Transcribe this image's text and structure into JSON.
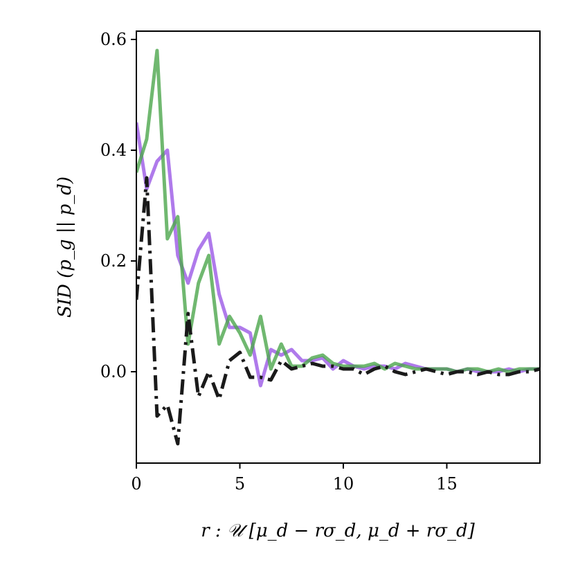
{
  "chart_data": {
    "type": "line",
    "title": "",
    "xlabel": "r : 𝒰 [μ_d − rσ_d, μ_d + rσ_d]",
    "ylabel": "SID (p_g || p_d)",
    "xlim": [
      0,
      19.5
    ],
    "ylim": [
      -0.165,
      0.615
    ],
    "xticks": [
      0,
      5,
      10,
      15
    ],
    "yticks": [
      0.0,
      0.2,
      0.4,
      0.6
    ],
    "xtick_labels": [
      "0",
      "5",
      "10",
      "15"
    ],
    "ytick_labels": [
      "0.0",
      "0.2",
      "0.4",
      "0.6"
    ],
    "grid": false,
    "series": [
      {
        "color": "#9b59e6",
        "style": "solid",
        "x": [
          0,
          0.5,
          1,
          1.5,
          2,
          2.5,
          3,
          3.5,
          4,
          4.5,
          5,
          5.5,
          6,
          6.5,
          7,
          7.5,
          8,
          8.5,
          9,
          9.5,
          10,
          10.5,
          11,
          11.5,
          12,
          12.5,
          13,
          13.5,
          14,
          14.5,
          15,
          15.5,
          16,
          16.5,
          17,
          17.5,
          18,
          18.5,
          19,
          19.5
        ],
        "y": [
          0.45,
          0.33,
          0.38,
          0.4,
          0.21,
          0.16,
          0.22,
          0.25,
          0.14,
          0.08,
          0.08,
          0.07,
          -0.025,
          0.04,
          0.03,
          0.04,
          0.02,
          0.02,
          0.025,
          0.005,
          0.02,
          0.01,
          0.005,
          0.01,
          0.01,
          0.005,
          0.015,
          0.01,
          0.005,
          0.005,
          0.005,
          0.0,
          0.005,
          0.0,
          0.0,
          0.0,
          0.005,
          0.0,
          0.005,
          0.005
        ]
      },
      {
        "color": "#4ca64c",
        "style": "solid",
        "x": [
          0,
          0.5,
          1,
          1.5,
          2,
          2.5,
          3,
          3.5,
          4,
          4.5,
          5,
          5.5,
          6,
          6.5,
          7,
          7.5,
          8,
          8.5,
          9,
          9.5,
          10,
          10.5,
          11,
          11.5,
          12,
          12.5,
          13,
          13.5,
          14,
          14.5,
          15,
          15.5,
          16,
          16.5,
          17,
          17.5,
          18,
          18.5,
          19,
          19.5
        ],
        "y": [
          0.36,
          0.42,
          0.58,
          0.24,
          0.28,
          0.05,
          0.16,
          0.21,
          0.05,
          0.1,
          0.07,
          0.03,
          0.1,
          0.005,
          0.05,
          0.01,
          0.01,
          0.025,
          0.03,
          0.015,
          0.01,
          0.01,
          0.01,
          0.015,
          0.005,
          0.015,
          0.01,
          0.005,
          0.005,
          0.005,
          0.005,
          0.0,
          0.005,
          0.005,
          0.0,
          0.005,
          0.0,
          0.005,
          0.005,
          0.005
        ]
      },
      {
        "color": "#1a1a1a",
        "style": "dashdot",
        "x": [
          0,
          0.5,
          1,
          1.5,
          2,
          2.5,
          3,
          3.5,
          4,
          4.5,
          5,
          5.5,
          6,
          6.5,
          7,
          7.5,
          8,
          8.5,
          9,
          9.5,
          10,
          10.5,
          11,
          11.5,
          12,
          12.5,
          13,
          13.5,
          14,
          14.5,
          15,
          15.5,
          16,
          16.5,
          17,
          17.5,
          18,
          18.5,
          19,
          19.5
        ],
        "y": [
          0.13,
          0.35,
          -0.08,
          -0.06,
          -0.13,
          0.105,
          -0.045,
          0.0,
          -0.05,
          0.02,
          0.035,
          -0.01,
          -0.01,
          -0.015,
          0.02,
          0.005,
          0.01,
          0.015,
          0.01,
          0.01,
          0.005,
          0.005,
          -0.005,
          0.005,
          0.01,
          0.0,
          -0.005,
          0.0,
          0.005,
          0.0,
          -0.005,
          0.0,
          0.0,
          -0.005,
          0.0,
          -0.005,
          -0.005,
          0.0,
          0.0,
          0.005
        ]
      }
    ]
  }
}
